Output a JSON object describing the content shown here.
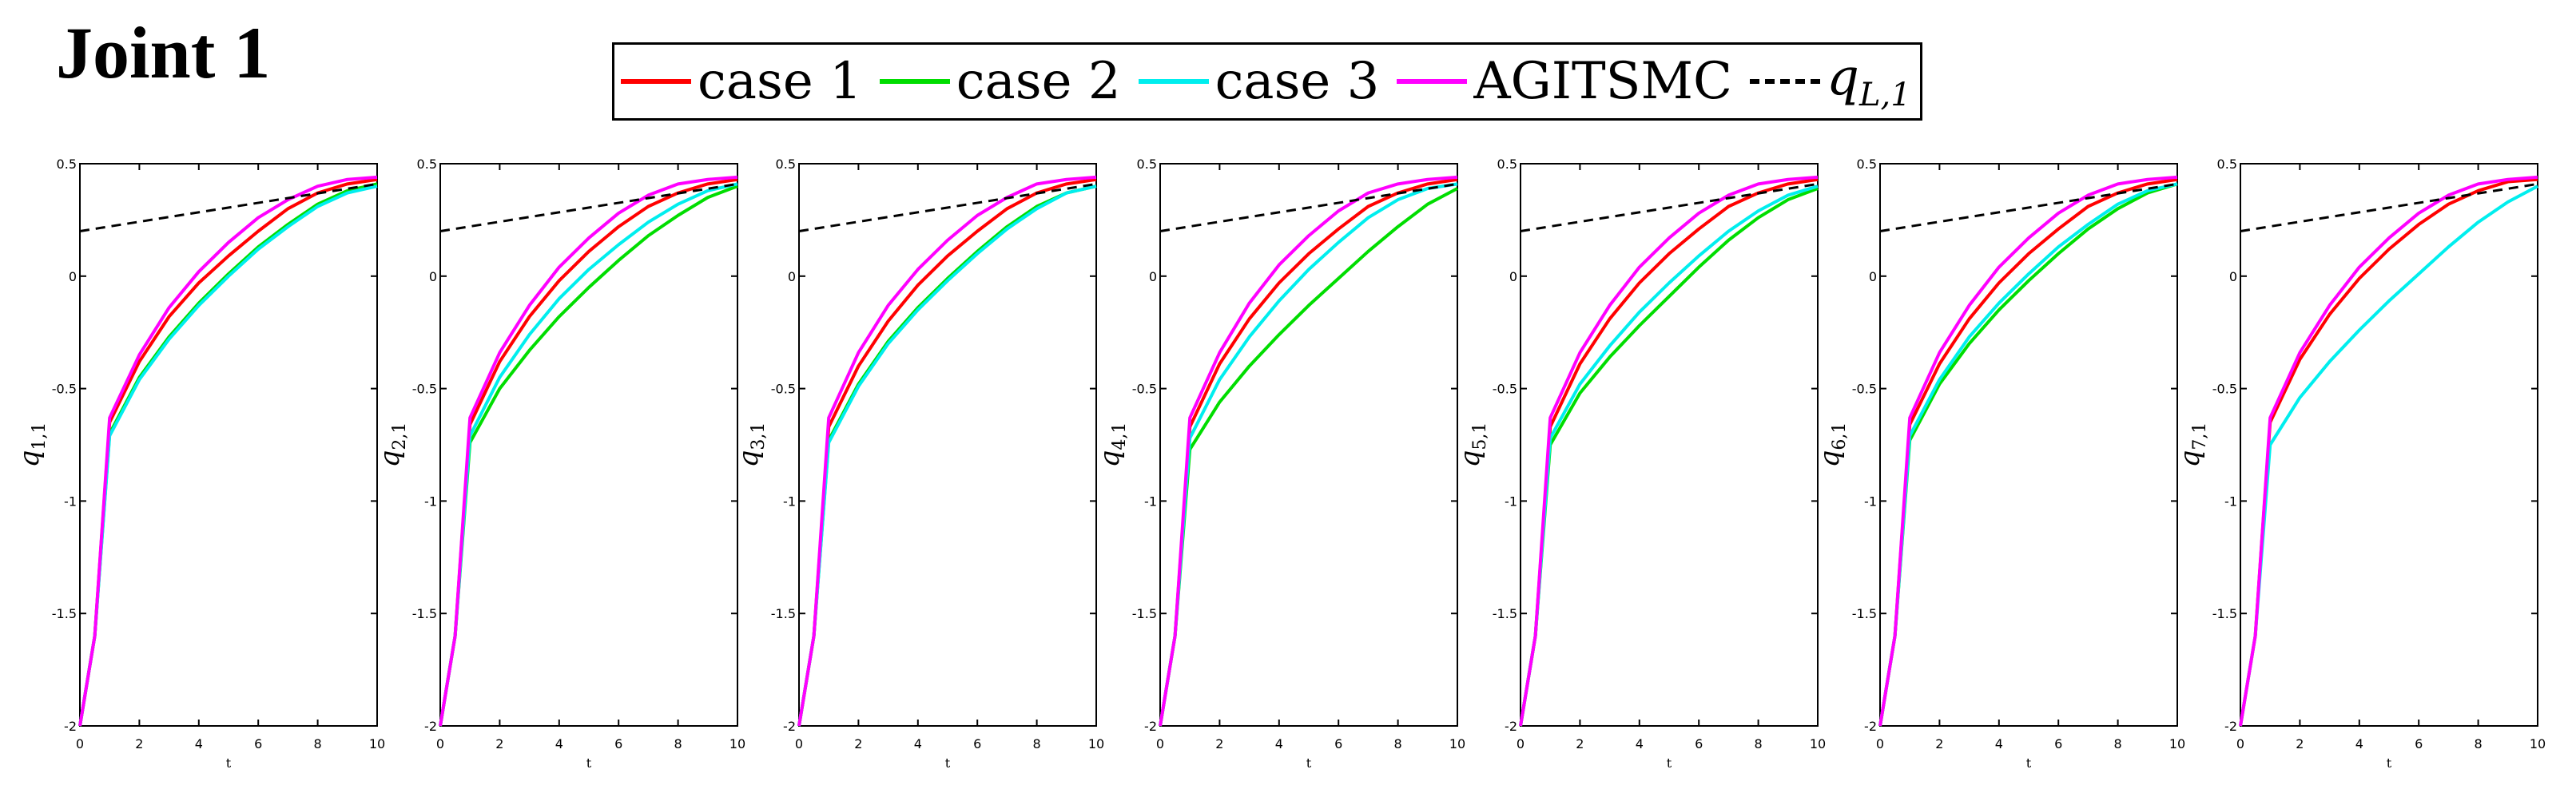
{
  "figure": {
    "title": "Joint 1"
  },
  "legend": [
    {
      "label": "case 1",
      "color": "#ff0000",
      "dashed": false
    },
    {
      "label": "case 2",
      "color": "#00dd00",
      "dashed": false
    },
    {
      "label": "case 3",
      "color": "#00eeee",
      "dashed": false
    },
    {
      "label": "AGITSMC",
      "color": "#ff00ff",
      "dashed": false
    },
    {
      "label_main": "q",
      "label_sub": "L,1",
      "color": "#000000",
      "dashed": true
    }
  ],
  "chart_data": [
    {
      "type": "line",
      "ylabel_main": "q",
      "ylabel_sub": "1,1",
      "xlabel": "t",
      "xlim": [
        0,
        10
      ],
      "ylim": [
        -2,
        0.5
      ],
      "xticks": [
        "0",
        "2",
        "4",
        "6",
        "8",
        "10"
      ],
      "yticks": [
        "-2",
        "-1.5",
        "-1",
        "-0.5",
        "0",
        "0.5"
      ],
      "series": [
        {
          "name": "case 1",
          "color": "#ff0000",
          "x": [
            0,
            0.5,
            1,
            2,
            3,
            4,
            5,
            6,
            7,
            8,
            9,
            10
          ],
          "y": [
            -2,
            -1.6,
            -0.65,
            -0.38,
            -0.18,
            -0.03,
            0.09,
            0.2,
            0.3,
            0.37,
            0.41,
            0.43
          ]
        },
        {
          "name": "case 2",
          "color": "#00dd00",
          "x": [
            0,
            0.5,
            1,
            2,
            3,
            4,
            5,
            6,
            7,
            8,
            9,
            10
          ],
          "y": [
            -2,
            -1.6,
            -0.7,
            -0.45,
            -0.27,
            -0.12,
            0.01,
            0.13,
            0.23,
            0.32,
            0.38,
            0.41
          ]
        },
        {
          "name": "case 3",
          "color": "#00eeee",
          "x": [
            0,
            0.5,
            1,
            2,
            3,
            4,
            5,
            6,
            7,
            8,
            9,
            10
          ],
          "y": [
            -2,
            -1.6,
            -0.71,
            -0.46,
            -0.28,
            -0.13,
            0,
            0.12,
            0.22,
            0.31,
            0.37,
            0.4
          ]
        },
        {
          "name": "AGITSMC",
          "color": "#ff00ff",
          "x": [
            0,
            0.5,
            1,
            2,
            3,
            4,
            5,
            6,
            7,
            8,
            9,
            10
          ],
          "y": [
            -2,
            -1.6,
            -0.63,
            -0.35,
            -0.14,
            0.02,
            0.15,
            0.26,
            0.34,
            0.4,
            0.43,
            0.44
          ]
        },
        {
          "name": "q_L,1",
          "color": "#000000",
          "dashed": true,
          "x": [
            0,
            10
          ],
          "y": [
            0.2,
            0.41
          ]
        }
      ]
    },
    {
      "type": "line",
      "ylabel_main": "q",
      "ylabel_sub": "2,1",
      "xlabel": "t",
      "xlim": [
        0,
        10
      ],
      "ylim": [
        -2,
        0.5
      ],
      "xticks": [
        "0",
        "2",
        "4",
        "6",
        "8",
        "10"
      ],
      "yticks": [
        "-2",
        "-1.5",
        "-1",
        "-0.5",
        "0",
        "0.5"
      ],
      "series": [
        {
          "name": "case 1",
          "color": "#ff0000",
          "x": [
            0,
            0.5,
            1,
            2,
            3,
            4,
            5,
            6,
            7,
            8,
            9,
            10
          ],
          "y": [
            -2,
            -1.6,
            -0.66,
            -0.38,
            -0.18,
            -0.02,
            0.11,
            0.22,
            0.31,
            0.37,
            0.41,
            0.43
          ]
        },
        {
          "name": "case 2",
          "color": "#00dd00",
          "x": [
            0,
            0.5,
            1,
            2,
            3,
            4,
            5,
            6,
            7,
            8,
            9,
            10
          ],
          "y": [
            -2,
            -1.6,
            -0.74,
            -0.5,
            -0.33,
            -0.18,
            -0.05,
            0.07,
            0.18,
            0.27,
            0.35,
            0.4
          ]
        },
        {
          "name": "case 3",
          "color": "#00eeee",
          "x": [
            0,
            0.5,
            1,
            2,
            3,
            4,
            5,
            6,
            7,
            8,
            9,
            10
          ],
          "y": [
            -2,
            -1.6,
            -0.71,
            -0.45,
            -0.26,
            -0.1,
            0.03,
            0.14,
            0.24,
            0.32,
            0.38,
            0.41
          ]
        },
        {
          "name": "AGITSMC",
          "color": "#ff00ff",
          "x": [
            0,
            0.5,
            1,
            2,
            3,
            4,
            5,
            6,
            7,
            8,
            9,
            10
          ],
          "y": [
            -2,
            -1.6,
            -0.63,
            -0.34,
            -0.13,
            0.04,
            0.17,
            0.28,
            0.36,
            0.41,
            0.43,
            0.44
          ]
        },
        {
          "name": "q_L,1",
          "color": "#000000",
          "dashed": true,
          "x": [
            0,
            10
          ],
          "y": [
            0.2,
            0.41
          ]
        }
      ]
    },
    {
      "type": "line",
      "ylabel_main": "q",
      "ylabel_sub": "3,1",
      "xlabel": "t",
      "xlim": [
        0,
        10
      ],
      "ylim": [
        -2,
        0.5
      ],
      "xticks": [
        "0",
        "2",
        "4",
        "6",
        "8",
        "10"
      ],
      "yticks": [
        "-2",
        "-1.5",
        "-1",
        "-0.5",
        "0",
        "0.5"
      ],
      "series": [
        {
          "name": "case 1",
          "color": "#ff0000",
          "x": [
            0,
            0.5,
            1,
            2,
            3,
            4,
            5,
            6,
            7,
            8,
            9,
            10
          ],
          "y": [
            -2,
            -1.6,
            -0.67,
            -0.4,
            -0.2,
            -0.04,
            0.09,
            0.2,
            0.3,
            0.37,
            0.41,
            0.43
          ]
        },
        {
          "name": "case 2",
          "color": "#00dd00",
          "x": [
            0,
            0.5,
            1,
            2,
            3,
            4,
            5,
            6,
            7,
            8,
            9,
            10
          ],
          "y": [
            -2,
            -1.6,
            -0.73,
            -0.48,
            -0.29,
            -0.14,
            -0.01,
            0.11,
            0.22,
            0.31,
            0.37,
            0.4
          ]
        },
        {
          "name": "case 3",
          "color": "#00eeee",
          "x": [
            0,
            0.5,
            1,
            2,
            3,
            4,
            5,
            6,
            7,
            8,
            9,
            10
          ],
          "y": [
            -2,
            -1.6,
            -0.74,
            -0.49,
            -0.3,
            -0.15,
            -0.02,
            0.1,
            0.21,
            0.3,
            0.37,
            0.4
          ]
        },
        {
          "name": "AGITSMC",
          "color": "#ff00ff",
          "x": [
            0,
            0.5,
            1,
            2,
            3,
            4,
            5,
            6,
            7,
            8,
            9,
            10
          ],
          "y": [
            -2,
            -1.6,
            -0.63,
            -0.34,
            -0.13,
            0.03,
            0.16,
            0.27,
            0.35,
            0.41,
            0.43,
            0.44
          ]
        },
        {
          "name": "q_L,1",
          "color": "#000000",
          "dashed": true,
          "x": [
            0,
            10
          ],
          "y": [
            0.2,
            0.41
          ]
        }
      ]
    },
    {
      "type": "line",
      "ylabel_main": "q",
      "ylabel_sub": "4,1",
      "xlabel": "t",
      "xlim": [
        0,
        10
      ],
      "ylim": [
        -2,
        0.5
      ],
      "xticks": [
        "0",
        "2",
        "4",
        "6",
        "8",
        "10"
      ],
      "yticks": [
        "-2",
        "-1.5",
        "-1",
        "-0.5",
        "0",
        "0.5"
      ],
      "series": [
        {
          "name": "case 1",
          "color": "#ff0000",
          "x": [
            0,
            0.5,
            1,
            2,
            3,
            4,
            5,
            6,
            7,
            8,
            9,
            10
          ],
          "y": [
            -2,
            -1.6,
            -0.67,
            -0.39,
            -0.19,
            -0.03,
            0.1,
            0.21,
            0.31,
            0.37,
            0.41,
            0.43
          ]
        },
        {
          "name": "case 2",
          "color": "#00dd00",
          "x": [
            0,
            0.5,
            1,
            2,
            3,
            4,
            5,
            6,
            7,
            8,
            9,
            10
          ],
          "y": [
            -2,
            -1.6,
            -0.77,
            -0.56,
            -0.4,
            -0.26,
            -0.13,
            -0.01,
            0.11,
            0.22,
            0.32,
            0.39
          ]
        },
        {
          "name": "case 3",
          "color": "#00eeee",
          "x": [
            0,
            0.5,
            1,
            2,
            3,
            4,
            5,
            6,
            7,
            8,
            9,
            10
          ],
          "y": [
            -2,
            -1.6,
            -0.72,
            -0.46,
            -0.27,
            -0.11,
            0.03,
            0.15,
            0.26,
            0.34,
            0.39,
            0.41
          ]
        },
        {
          "name": "AGITSMC",
          "color": "#ff00ff",
          "x": [
            0,
            0.5,
            1,
            2,
            3,
            4,
            5,
            6,
            7,
            8,
            9,
            10
          ],
          "y": [
            -2,
            -1.6,
            -0.63,
            -0.34,
            -0.12,
            0.05,
            0.18,
            0.29,
            0.37,
            0.41,
            0.43,
            0.44
          ]
        },
        {
          "name": "q_L,1",
          "color": "#000000",
          "dashed": true,
          "x": [
            0,
            10
          ],
          "y": [
            0.2,
            0.41
          ]
        }
      ]
    },
    {
      "type": "line",
      "ylabel_main": "q",
      "ylabel_sub": "5,1",
      "xlabel": "t",
      "xlim": [
        0,
        10
      ],
      "ylim": [
        -2,
        0.5
      ],
      "xticks": [
        "0",
        "2",
        "4",
        "6",
        "8",
        "10"
      ],
      "yticks": [
        "-2",
        "-1.5",
        "-1",
        "-0.5",
        "0",
        "0.5"
      ],
      "series": [
        {
          "name": "case 1",
          "color": "#ff0000",
          "x": [
            0,
            0.5,
            1,
            2,
            3,
            4,
            5,
            6,
            7,
            8,
            9,
            10
          ],
          "y": [
            -2,
            -1.6,
            -0.67,
            -0.39,
            -0.19,
            -0.03,
            0.1,
            0.21,
            0.31,
            0.37,
            0.41,
            0.43
          ]
        },
        {
          "name": "case 2",
          "color": "#00dd00",
          "x": [
            0,
            0.5,
            1,
            2,
            3,
            4,
            5,
            6,
            7,
            8,
            9,
            10
          ],
          "y": [
            -2,
            -1.6,
            -0.75,
            -0.52,
            -0.36,
            -0.22,
            -0.09,
            0.04,
            0.16,
            0.26,
            0.34,
            0.39
          ]
        },
        {
          "name": "case 3",
          "color": "#00eeee",
          "x": [
            0,
            0.5,
            1,
            2,
            3,
            4,
            5,
            6,
            7,
            8,
            9,
            10
          ],
          "y": [
            -2,
            -1.6,
            -0.72,
            -0.48,
            -0.31,
            -0.16,
            -0.03,
            0.09,
            0.2,
            0.29,
            0.36,
            0.4
          ]
        },
        {
          "name": "AGITSMC",
          "color": "#ff00ff",
          "x": [
            0,
            0.5,
            1,
            2,
            3,
            4,
            5,
            6,
            7,
            8,
            9,
            10
          ],
          "y": [
            -2,
            -1.6,
            -0.63,
            -0.34,
            -0.13,
            0.04,
            0.17,
            0.28,
            0.36,
            0.41,
            0.43,
            0.44
          ]
        },
        {
          "name": "q_L,1",
          "color": "#000000",
          "dashed": true,
          "x": [
            0,
            10
          ],
          "y": [
            0.2,
            0.41
          ]
        }
      ]
    },
    {
      "type": "line",
      "ylabel_main": "q",
      "ylabel_sub": "6,1",
      "xlabel": "t",
      "xlim": [
        0,
        10
      ],
      "ylim": [
        -2,
        0.5
      ],
      "xticks": [
        "0",
        "2",
        "4",
        "6",
        "8",
        "10"
      ],
      "yticks": [
        "-2",
        "-1.5",
        "-1",
        "-0.5",
        "0",
        "0.5"
      ],
      "series": [
        {
          "name": "case 1",
          "color": "#ff0000",
          "x": [
            0,
            0.5,
            1,
            2,
            3,
            4,
            5,
            6,
            7,
            8,
            9,
            10
          ],
          "y": [
            -2,
            -1.6,
            -0.66,
            -0.39,
            -0.19,
            -0.03,
            0.1,
            0.21,
            0.31,
            0.37,
            0.41,
            0.43
          ]
        },
        {
          "name": "case 2",
          "color": "#00dd00",
          "x": [
            0,
            0.5,
            1,
            2,
            3,
            4,
            5,
            6,
            7,
            8,
            9,
            10
          ],
          "y": [
            -2,
            -1.6,
            -0.73,
            -0.48,
            -0.3,
            -0.15,
            -0.02,
            0.1,
            0.21,
            0.3,
            0.37,
            0.41
          ]
        },
        {
          "name": "case 3",
          "color": "#00eeee",
          "x": [
            0,
            0.5,
            1,
            2,
            3,
            4,
            5,
            6,
            7,
            8,
            9,
            10
          ],
          "y": [
            -2,
            -1.6,
            -0.71,
            -0.46,
            -0.27,
            -0.12,
            0.01,
            0.13,
            0.23,
            0.32,
            0.38,
            0.41
          ]
        },
        {
          "name": "AGITSMC",
          "color": "#ff00ff",
          "x": [
            0,
            0.5,
            1,
            2,
            3,
            4,
            5,
            6,
            7,
            8,
            9,
            10
          ],
          "y": [
            -2,
            -1.6,
            -0.63,
            -0.34,
            -0.13,
            0.04,
            0.17,
            0.28,
            0.36,
            0.41,
            0.43,
            0.44
          ]
        },
        {
          "name": "q_L,1",
          "color": "#000000",
          "dashed": true,
          "x": [
            0,
            10
          ],
          "y": [
            0.2,
            0.41
          ]
        }
      ]
    },
    {
      "type": "line",
      "ylabel_main": "q",
      "ylabel_sub": "7,1",
      "xlabel": "t",
      "xlim": [
        0,
        10
      ],
      "ylim": [
        -2,
        0.5
      ],
      "xticks": [
        "0",
        "2",
        "4",
        "6",
        "8",
        "10"
      ],
      "yticks": [
        "-2",
        "-1.5",
        "-1",
        "-0.5",
        "0",
        "0.5"
      ],
      "series": [
        {
          "name": "case 1",
          "color": "#ff0000",
          "x": [
            0,
            0.5,
            1,
            2,
            3,
            4,
            5,
            6,
            7,
            8,
            9,
            10
          ],
          "y": [
            -2,
            -1.6,
            -0.65,
            -0.37,
            -0.17,
            -0.01,
            0.12,
            0.23,
            0.32,
            0.38,
            0.42,
            0.43
          ]
        },
        {
          "name": "case 3",
          "color": "#00eeee",
          "x": [
            0,
            0.5,
            1,
            2,
            3,
            4,
            5,
            6,
            7,
            8,
            9,
            10
          ],
          "y": [
            -2,
            -1.6,
            -0.75,
            -0.54,
            -0.38,
            -0.24,
            -0.11,
            0.01,
            0.13,
            0.24,
            0.33,
            0.4
          ]
        },
        {
          "name": "AGITSMC",
          "color": "#ff00ff",
          "x": [
            0,
            0.5,
            1,
            2,
            3,
            4,
            5,
            6,
            7,
            8,
            9,
            10
          ],
          "y": [
            -2,
            -1.6,
            -0.63,
            -0.34,
            -0.13,
            0.04,
            0.17,
            0.28,
            0.36,
            0.41,
            0.43,
            0.44
          ]
        },
        {
          "name": "q_L,1",
          "color": "#000000",
          "dashed": true,
          "x": [
            0,
            10
          ],
          "y": [
            0.2,
            0.41
          ]
        }
      ]
    }
  ]
}
